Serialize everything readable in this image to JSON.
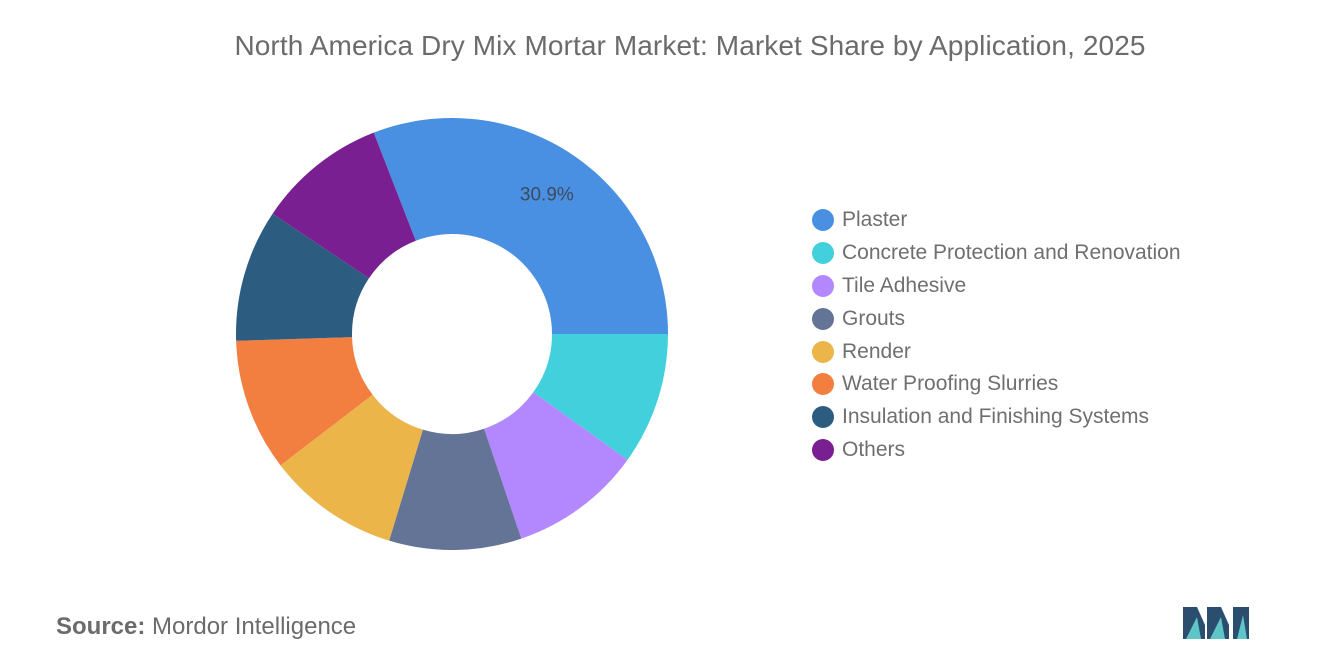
{
  "chart_data": {
    "type": "pie",
    "title": "North America Dry Mix Mortar Market: Market Share by Application, 2025",
    "slices": [
      {
        "label": "Plaster",
        "value": 30.9,
        "color": "#4a90e2",
        "data_label": "30.9%"
      },
      {
        "label": "Concrete Protection and Renovation",
        "value": 9.9,
        "color": "#42d0dc"
      },
      {
        "label": "Tile Adhesive",
        "value": 9.9,
        "color": "#b388ff"
      },
      {
        "label": "Grouts",
        "value": 9.9,
        "color": "#637496"
      },
      {
        "label": "Render",
        "value": 9.9,
        "color": "#ebb54a"
      },
      {
        "label": "Water Proofing Slurries",
        "value": 9.9,
        "color": "#f27f40"
      },
      {
        "label": "Insulation and Finishing Systems",
        "value": 9.9,
        "color": "#2c5c80"
      },
      {
        "label": "Others",
        "value": 9.7,
        "color": "#7a1f91"
      }
    ],
    "legend_position": "right"
  },
  "source": {
    "label": "Source:",
    "text": "Mordor Intelligence"
  },
  "logo_icon": "mordor-intelligence-logo"
}
